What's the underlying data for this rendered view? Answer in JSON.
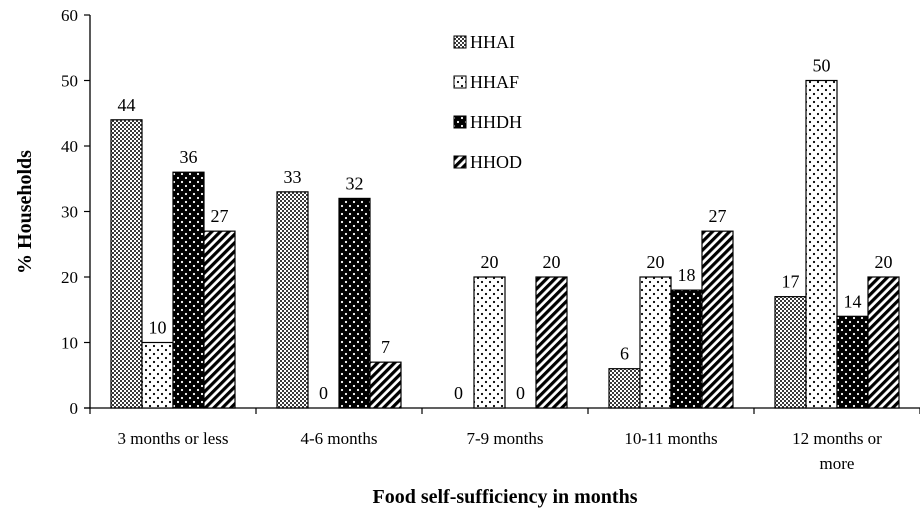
{
  "chart_data": {
    "type": "bar",
    "title": "",
    "xlabel": "Food self-sufficiency in months",
    "ylabel": "% Households",
    "ylim": [
      0,
      60
    ],
    "yticks": [
      0,
      10,
      20,
      30,
      40,
      50,
      60
    ],
    "grid": false,
    "legend_position": "top-center",
    "categories": [
      [
        "3 months or less"
      ],
      [
        "4-6 months"
      ],
      [
        "7-9 months"
      ],
      [
        "10-11 months"
      ],
      [
        "12 months or",
        "more"
      ]
    ],
    "series": [
      {
        "name": "HHAI",
        "values": [
          44,
          33,
          0,
          6,
          17
        ],
        "pattern": "checker"
      },
      {
        "name": "HHAF",
        "values": [
          10,
          0,
          20,
          20,
          50
        ],
        "pattern": "dots-light"
      },
      {
        "name": "HHDH",
        "values": [
          36,
          32,
          0,
          18,
          14
        ],
        "pattern": "dots-dark"
      },
      {
        "name": "HHOD",
        "values": [
          27,
          7,
          20,
          27,
          20
        ],
        "pattern": "diagonal"
      }
    ],
    "colors": {
      "ink": "#000000",
      "background": "#ffffff"
    }
  }
}
